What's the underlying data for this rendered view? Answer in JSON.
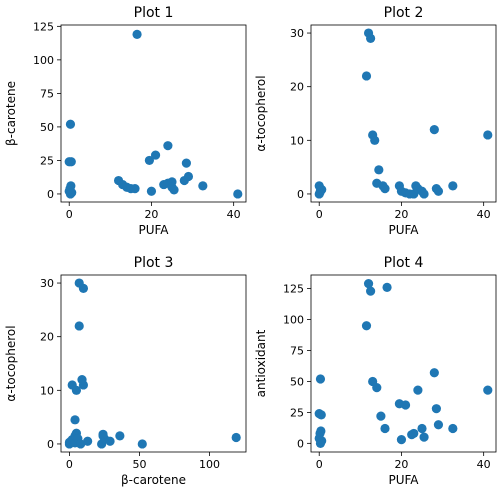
{
  "chart_data": [
    {
      "type": "scatter",
      "title": "Plot 1",
      "xlabel": "PUFA",
      "ylabel": "β-carotene",
      "xlim": [
        -2,
        43
      ],
      "ylim": [
        -6,
        126
      ],
      "xticks": [
        0,
        20,
        40
      ],
      "yticks": [
        0,
        25,
        50,
        75,
        100,
        125
      ],
      "color": "#1f77b4",
      "x": [
        0.3,
        0.0,
        0.5,
        0.4,
        0.2,
        0.0,
        0.6,
        0.3,
        16.5,
        12.0,
        13.0,
        14.0,
        15.0,
        16.0,
        19.5,
        20.0,
        21.0,
        23.0,
        24.0,
        24.0,
        25.0,
        25.0,
        25.5,
        28.0,
        28.5,
        29.0,
        32.5,
        41.0
      ],
      "y": [
        52.0,
        24.0,
        24.0,
        6.0,
        4.0,
        2.0,
        1.0,
        0.0,
        119.0,
        10.0,
        7.0,
        5.0,
        4.0,
        4.0,
        25.0,
        2.0,
        29.0,
        7.0,
        36.0,
        8.0,
        9.0,
        5.0,
        3.0,
        10.0,
        23.0,
        13.0,
        6.0,
        0.0
      ]
    },
    {
      "type": "scatter",
      "title": "Plot 2",
      "xlabel": "PUFA",
      "ylabel": "α-tocopherol",
      "xlim": [
        -2,
        43
      ],
      "ylim": [
        -1.5,
        31.5
      ],
      "xticks": [
        0,
        20,
        40
      ],
      "yticks": [
        0,
        10,
        20,
        30
      ],
      "color": "#1f77b4",
      "x": [
        0.0,
        0.3,
        0.6,
        0.2,
        0.0,
        12.0,
        12.5,
        13.0,
        11.5,
        13.5,
        14.5,
        14.0,
        15.5,
        16.0,
        19.5,
        20.0,
        21.0,
        22.0,
        23.0,
        23.5,
        24.0,
        25.0,
        25.5,
        28.0,
        28.5,
        29.0,
        32.5,
        41.0
      ],
      "y": [
        1.5,
        1.0,
        0.8,
        0.3,
        0.0,
        30.0,
        29.0,
        11.0,
        22.0,
        10.0,
        4.5,
        2.0,
        1.5,
        1.0,
        1.5,
        0.5,
        0.2,
        0.0,
        0.0,
        1.5,
        1.0,
        0.5,
        0.0,
        12.0,
        1.0,
        0.5,
        1.5,
        11.0
      ]
    },
    {
      "type": "scatter",
      "title": "Plot 3",
      "xlabel": "β-carotene",
      "ylabel": "α-tocopherol",
      "xlim": [
        -6,
        126
      ],
      "ylim": [
        -1.5,
        31.5
      ],
      "xticks": [
        0,
        50,
        100
      ],
      "yticks": [
        0,
        10,
        20,
        30
      ],
      "color": "#1f77b4",
      "x": [
        10.0,
        7.0,
        7.0,
        5.0,
        2.0,
        4.0,
        5.0,
        4.0,
        5.0,
        10.0,
        9.0,
        3.0,
        0.0,
        0.0,
        1.0,
        2.0,
        4.0,
        6.0,
        8.0,
        13.0,
        23.0,
        24.0,
        25.0,
        29.0,
        36.0,
        52.0,
        119.0,
        24.0
      ],
      "y": [
        29.0,
        30.0,
        22.0,
        10.0,
        11.0,
        4.5,
        2.0,
        1.5,
        1.0,
        11.0,
        12.0,
        0.5,
        0.0,
        0.3,
        0.5,
        0.8,
        0.2,
        1.0,
        0.0,
        0.5,
        0.0,
        1.5,
        1.0,
        0.5,
        1.5,
        0.0,
        1.2,
        1.8
      ]
    },
    {
      "type": "scatter",
      "title": "Plot 4",
      "xlabel": "PUFA",
      "ylabel": "antioxidant",
      "xlim": [
        -2,
        43
      ],
      "ylim": [
        -7,
        136
      ],
      "xticks": [
        0,
        20,
        40
      ],
      "yticks": [
        0,
        25,
        50,
        75,
        100,
        125
      ],
      "color": "#1f77b4",
      "x": [
        0.3,
        0.0,
        0.5,
        0.4,
        0.2,
        0.0,
        0.6,
        0.3,
        12.0,
        12.5,
        11.5,
        13.0,
        16.5,
        14.0,
        15.0,
        16.0,
        19.5,
        20.0,
        21.0,
        22.5,
        23.0,
        24.0,
        25.0,
        25.5,
        28.0,
        28.5,
        29.0,
        32.5,
        41.0
      ],
      "y": [
        52.0,
        24.0,
        23.0,
        10.0,
        8.0,
        4.0,
        2.0,
        0.0,
        129.0,
        123.0,
        95.0,
        50.0,
        126.0,
        45.0,
        22.0,
        12.0,
        32.0,
        3.0,
        31.0,
        7.0,
        8.0,
        43.0,
        12.0,
        5.0,
        57.0,
        28.0,
        15.0,
        12.0,
        43.0
      ]
    }
  ]
}
